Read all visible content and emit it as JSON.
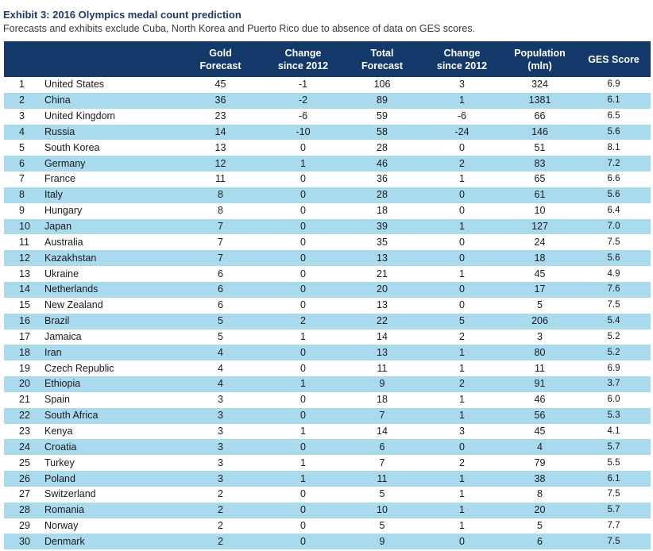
{
  "exhibit": {
    "title": "Exhibit 3: 2016 Olympics medal count prediction",
    "subtitle": "Forecasts and exhibits exclude Cuba, North Korea and Puerto Rico due to absence of data on GES scores."
  },
  "table": {
    "headers": [
      {
        "line1": "",
        "line2": ""
      },
      {
        "line1": "",
        "line2": ""
      },
      {
        "line1": "Gold",
        "line2": "Forecast"
      },
      {
        "line1": "Change",
        "line2": "since 2012"
      },
      {
        "line1": "Total",
        "line2": "Forecast"
      },
      {
        "line1": "Change",
        "line2": "since 2012"
      },
      {
        "line1": "Population",
        "line2": "(mln)"
      },
      {
        "line1": "GES Score",
        "line2": ""
      }
    ],
    "rows": [
      {
        "rank": "1",
        "country": "United States",
        "gold": "45",
        "gold_change": "-1",
        "total": "106",
        "total_change": "3",
        "population": "324",
        "ges": "6.9"
      },
      {
        "rank": "2",
        "country": "China",
        "gold": "36",
        "gold_change": "-2",
        "total": "89",
        "total_change": "1",
        "population": "1381",
        "ges": "6.1"
      },
      {
        "rank": "3",
        "country": "United Kingdom",
        "gold": "23",
        "gold_change": "-6",
        "total": "59",
        "total_change": "-6",
        "population": "66",
        "ges": "6.5"
      },
      {
        "rank": "4",
        "country": "Russia",
        "gold": "14",
        "gold_change": "-10",
        "total": "58",
        "total_change": "-24",
        "population": "146",
        "ges": "5.6"
      },
      {
        "rank": "5",
        "country": "South Korea",
        "gold": "13",
        "gold_change": "0",
        "total": "28",
        "total_change": "0",
        "population": "51",
        "ges": "8.1"
      },
      {
        "rank": "6",
        "country": "Germany",
        "gold": "12",
        "gold_change": "1",
        "total": "46",
        "total_change": "2",
        "population": "83",
        "ges": "7.2"
      },
      {
        "rank": "7",
        "country": "France",
        "gold": "11",
        "gold_change": "0",
        "total": "36",
        "total_change": "1",
        "population": "65",
        "ges": "6.6"
      },
      {
        "rank": "8",
        "country": "Italy",
        "gold": "8",
        "gold_change": "0",
        "total": "28",
        "total_change": "0",
        "population": "61",
        "ges": "5.6"
      },
      {
        "rank": "9",
        "country": "Hungary",
        "gold": "8",
        "gold_change": "0",
        "total": "18",
        "total_change": "0",
        "population": "10",
        "ges": "6.4"
      },
      {
        "rank": "10",
        "country": "Japan",
        "gold": "7",
        "gold_change": "0",
        "total": "39",
        "total_change": "1",
        "population": "127",
        "ges": "7.0"
      },
      {
        "rank": "11",
        "country": "Australia",
        "gold": "7",
        "gold_change": "0",
        "total": "35",
        "total_change": "0",
        "population": "24",
        "ges": "7.5"
      },
      {
        "rank": "12",
        "country": "Kazakhstan",
        "gold": "7",
        "gold_change": "0",
        "total": "13",
        "total_change": "0",
        "population": "18",
        "ges": "5.6"
      },
      {
        "rank": "13",
        "country": "Ukraine",
        "gold": "6",
        "gold_change": "0",
        "total": "21",
        "total_change": "1",
        "population": "45",
        "ges": "4.9"
      },
      {
        "rank": "14",
        "country": "Netherlands",
        "gold": "6",
        "gold_change": "0",
        "total": "20",
        "total_change": "0",
        "population": "17",
        "ges": "7.6"
      },
      {
        "rank": "15",
        "country": "New Zealand",
        "gold": "6",
        "gold_change": "0",
        "total": "13",
        "total_change": "0",
        "population": "5",
        "ges": "7.5"
      },
      {
        "rank": "16",
        "country": "Brazil",
        "gold": "5",
        "gold_change": "2",
        "total": "22",
        "total_change": "5",
        "population": "206",
        "ges": "5.4"
      },
      {
        "rank": "17",
        "country": "Jamaica",
        "gold": "5",
        "gold_change": "1",
        "total": "14",
        "total_change": "2",
        "population": "3",
        "ges": "5.2"
      },
      {
        "rank": "18",
        "country": "Iran",
        "gold": "4",
        "gold_change": "0",
        "total": "13",
        "total_change": "1",
        "population": "80",
        "ges": "5.2"
      },
      {
        "rank": "19",
        "country": "Czech Republic",
        "gold": "4",
        "gold_change": "0",
        "total": "11",
        "total_change": "1",
        "population": "11",
        "ges": "6.9"
      },
      {
        "rank": "20",
        "country": "Ethiopia",
        "gold": "4",
        "gold_change": "1",
        "total": "9",
        "total_change": "2",
        "population": "91",
        "ges": "3.7"
      },
      {
        "rank": "21",
        "country": "Spain",
        "gold": "3",
        "gold_change": "0",
        "total": "18",
        "total_change": "1",
        "population": "46",
        "ges": "6.0"
      },
      {
        "rank": "22",
        "country": "South Africa",
        "gold": "3",
        "gold_change": "0",
        "total": "7",
        "total_change": "1",
        "population": "56",
        "ges": "5.3"
      },
      {
        "rank": "23",
        "country": "Kenya",
        "gold": "3",
        "gold_change": "1",
        "total": "14",
        "total_change": "3",
        "population": "45",
        "ges": "4.1"
      },
      {
        "rank": "24",
        "country": "Croatia",
        "gold": "3",
        "gold_change": "0",
        "total": "6",
        "total_change": "0",
        "population": "4",
        "ges": "5.7"
      },
      {
        "rank": "25",
        "country": "Turkey",
        "gold": "3",
        "gold_change": "1",
        "total": "7",
        "total_change": "2",
        "population": "79",
        "ges": "5.5"
      },
      {
        "rank": "26",
        "country": "Poland",
        "gold": "3",
        "gold_change": "1",
        "total": "11",
        "total_change": "1",
        "population": "38",
        "ges": "6.1"
      },
      {
        "rank": "27",
        "country": "Switzerland",
        "gold": "2",
        "gold_change": "0",
        "total": "5",
        "total_change": "1",
        "population": "8",
        "ges": "7.5"
      },
      {
        "rank": "28",
        "country": "Romania",
        "gold": "2",
        "gold_change": "0",
        "total": "10",
        "total_change": "1",
        "population": "20",
        "ges": "5.7"
      },
      {
        "rank": "29",
        "country": "Norway",
        "gold": "2",
        "gold_change": "0",
        "total": "5",
        "total_change": "1",
        "population": "5",
        "ges": "7.7"
      },
      {
        "rank": "30",
        "country": "Denmark",
        "gold": "2",
        "gold_change": "0",
        "total": "9",
        "total_change": "0",
        "population": "6",
        "ges": "7.5"
      }
    ]
  },
  "colors": {
    "title": "#1f3b6b",
    "header_bg": "#13396b",
    "header_text": "#ffffff",
    "stripe": "#a9daee",
    "row_bg": "#ffffff"
  }
}
